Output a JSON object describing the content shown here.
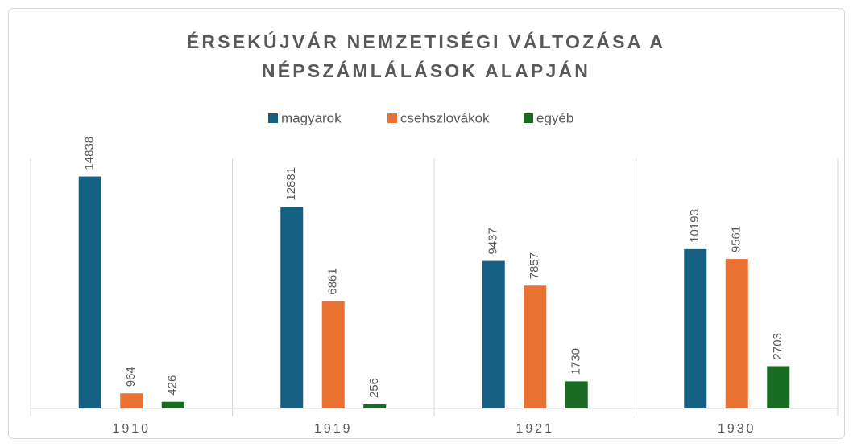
{
  "chart_data": {
    "type": "bar",
    "title": "ÉRSEKÚJVÁR NEMZETISÉGI VÁLTOZÁSA A NÉPSZÁMLÁLÁSOK ALAPJÁN",
    "categories": [
      "1910",
      "1919",
      "1921",
      "1930"
    ],
    "series": [
      {
        "name": "magyarok",
        "color": "#156082",
        "values": [
          14838,
          12881,
          9437,
          10193
        ]
      },
      {
        "name": "csehszlovákok",
        "color": "#e97132",
        "values": [
          964,
          6861,
          7857,
          9561
        ]
      },
      {
        "name": "egyéb",
        "color": "#196b24",
        "values": [
          426,
          256,
          1730,
          2703
        ]
      }
    ],
    "ylim": [
      0,
      16000
    ],
    "legend": "top"
  }
}
